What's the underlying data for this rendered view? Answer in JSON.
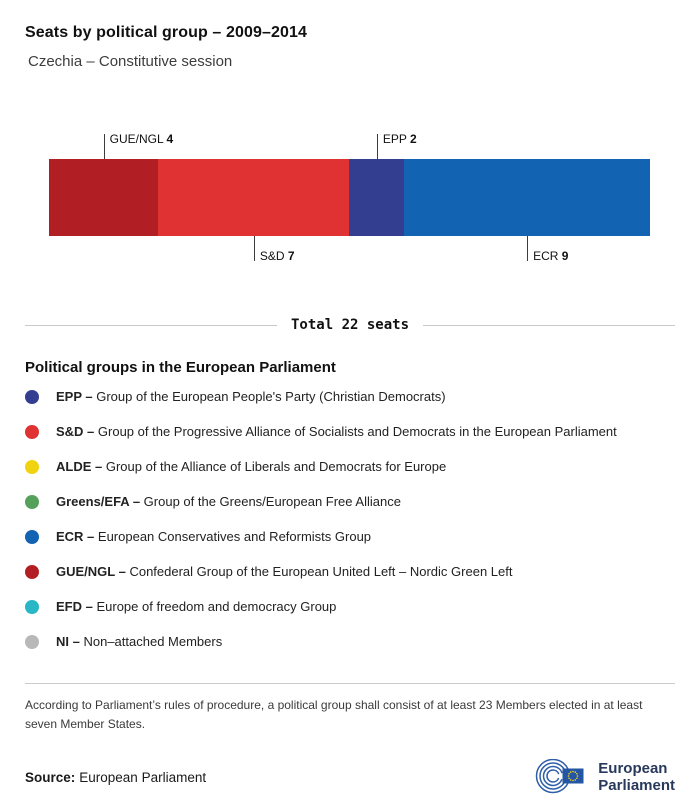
{
  "header": {
    "title": "Seats by political group – 2009–2014",
    "subtitle": "Czechia – Constitutive session"
  },
  "chart_data": {
    "type": "bar",
    "orientation": "horizontal-stacked",
    "title": "Seats by political group – 2009–2014",
    "subtitle": "Czechia – Constitutive session",
    "total": 22,
    "total_label": "Total 22 seats",
    "segments": [
      {
        "group": "GUE/NGL",
        "seats": 4,
        "color": "#b11f24",
        "label_position": "above"
      },
      {
        "group": "S&D",
        "seats": 7,
        "color": "#e03232",
        "label_position": "below"
      },
      {
        "group": "EPP",
        "seats": 2,
        "color": "#333e90",
        "label_position": "above"
      },
      {
        "group": "ECR",
        "seats": 9,
        "color": "#1263b2",
        "label_position": "below"
      }
    ]
  },
  "legend": {
    "heading": "Political groups in the European Parliament",
    "items": [
      {
        "abbr": "EPP –",
        "name": "Group of the European People's Party (Christian Democrats)",
        "color": "#333e90"
      },
      {
        "abbr": "S&D –",
        "name": "Group of the Progressive Alliance of Socialists and Democrats in the European Parliament",
        "color": "#e03232"
      },
      {
        "abbr": "ALDE –",
        "name": "Group of the Alliance of Liberals and Democrats for Europe",
        "color": "#f0d20e"
      },
      {
        "abbr": "Greens/EFA –",
        "name": "Group of the Greens/European Free Alliance",
        "color": "#55a05a"
      },
      {
        "abbr": "ECR –",
        "name": "European Conservatives and Reformists Group",
        "color": "#1263b2"
      },
      {
        "abbr": "GUE/NGL –",
        "name": "Confederal Group of the European United Left – Nordic Green Left",
        "color": "#b11f24"
      },
      {
        "abbr": "EFD –",
        "name": "Europe of freedom and democracy Group",
        "color": "#29b6c6"
      },
      {
        "abbr": "NI –",
        "name": "Non–attached Members",
        "color": "#b8b8b8"
      }
    ]
  },
  "footnote": "According to Parliament’s rules of procedure, a political group shall consist of at least 23 Members elected in at least seven Member States.",
  "source": {
    "label": "Source:",
    "value": "European Parliament"
  },
  "logo": {
    "line1": "European",
    "line2": "Parliament"
  }
}
